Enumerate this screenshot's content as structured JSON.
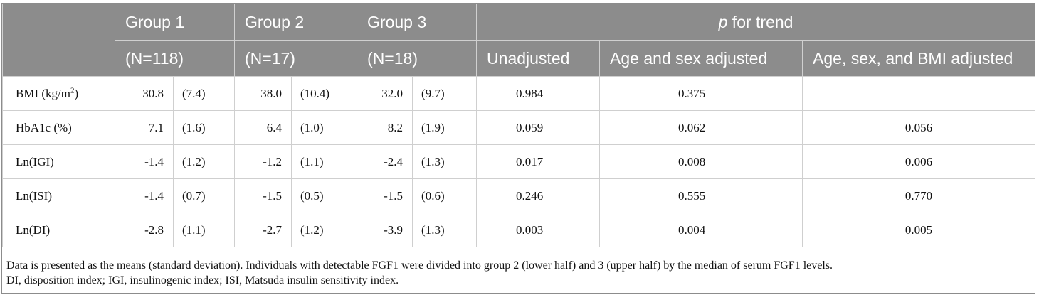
{
  "header": {
    "groups": [
      "Group 1",
      "Group 2",
      "Group 3"
    ],
    "ns": [
      "(N=118)",
      "(N=17)",
      "(N=18)"
    ],
    "trend_p": "p",
    "trend_rest": " for trend",
    "adjustments": [
      "Unadjusted",
      "Age and sex adjusted",
      "Age, sex, and BMI adjusted"
    ]
  },
  "rows": [
    {
      "label": "BMI (kg/m",
      "sup": "2",
      "label_end": ")",
      "g1m": "30.8",
      "g1s": "(7.4)",
      "g2m": "38.0",
      "g2s": "(10.4)",
      "g3m": "32.0",
      "g3s": "(9.7)",
      "p_unadj": "0.984",
      "p_age_sex": "0.375",
      "p_age_sex_bmi": ""
    },
    {
      "label": "HbA1c (%)",
      "g1m": "7.1",
      "g1s": "(1.6)",
      "g2m": "6.4",
      "g2s": "(1.0)",
      "g3m": "8.2",
      "g3s": "(1.9)",
      "p_unadj": "0.059",
      "p_age_sex": "0.062",
      "p_age_sex_bmi": "0.056"
    },
    {
      "label": "Ln(IGI)",
      "g1m": "-1.4",
      "g1s": "(1.2)",
      "g2m": "-1.2",
      "g2s": "(1.1)",
      "g3m": "-2.4",
      "g3s": "(1.3)",
      "p_unadj": "0.017",
      "p_age_sex": "0.008",
      "p_age_sex_bmi": "0.006"
    },
    {
      "label": "Ln(ISI)",
      "g1m": "-1.4",
      "g1s": "(0.7)",
      "g2m": "-1.5",
      "g2s": "(0.5)",
      "g3m": "-1.5",
      "g3s": "(0.6)",
      "p_unadj": "0.246",
      "p_age_sex": "0.555",
      "p_age_sex_bmi": "0.770"
    },
    {
      "label": "Ln(DI)",
      "g1m": "-2.8",
      "g1s": "(1.1)",
      "g2m": "-2.7",
      "g2s": "(1.2)",
      "g3m": "-3.9",
      "g3s": "(1.3)",
      "p_unadj": "0.003",
      "p_age_sex": "0.004",
      "p_age_sex_bmi": "0.005"
    }
  ],
  "footnotes": [
    "Data is presented as the means (standard deviation). Individuals with detectable FGF1 were divided into group 2 (lower half) and 3 (upper half) by the median of serum FGF1 levels.",
    "DI, disposition index; IGI, insulinogenic index; ISI, Matsuda insulin sensitivity index."
  ]
}
